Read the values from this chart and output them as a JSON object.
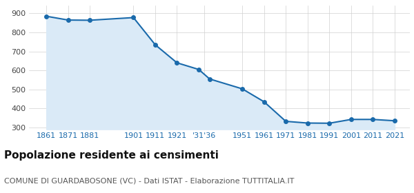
{
  "years": [
    1861,
    1871,
    1881,
    1901,
    1911,
    1921,
    1931,
    1936,
    1951,
    1961,
    1971,
    1981,
    1991,
    2001,
    2011,
    2021
  ],
  "population": [
    885,
    865,
    864,
    878,
    735,
    640,
    605,
    555,
    503,
    435,
    332,
    323,
    322,
    342,
    342,
    335
  ],
  "line_color": "#1a6aab",
  "fill_color": "#daeaf7",
  "marker_color": "#1a6aab",
  "background_color": "#ffffff",
  "grid_color": "#d0d0d0",
  "ylim": [
    290,
    940
  ],
  "yticks": [
    300,
    400,
    500,
    600,
    700,
    800,
    900
  ],
  "xlim": [
    1853,
    2028
  ],
  "title": "Popolazione residente ai censimenti",
  "subtitle": "COMUNE DI GUARDABOSONE (VC) - Dati ISTAT - Elaborazione TUTTITALIA.IT",
  "title_fontsize": 11,
  "subtitle_fontsize": 8,
  "axis_label_color": "#1a6aab",
  "tick_fontsize": 8,
  "x_tick_positions": [
    1861,
    1871,
    1881,
    1901,
    1911,
    1921,
    1933.5,
    1951,
    1961,
    1971,
    1981,
    1991,
    2001,
    2011,
    2021
  ],
  "x_tick_labels": [
    "1861",
    "1871",
    "1881",
    "1901",
    "1911",
    "1921",
    "'31'36",
    "1951",
    "1961",
    "1971",
    "1981",
    "1991",
    "2001",
    "2011",
    "2021"
  ]
}
